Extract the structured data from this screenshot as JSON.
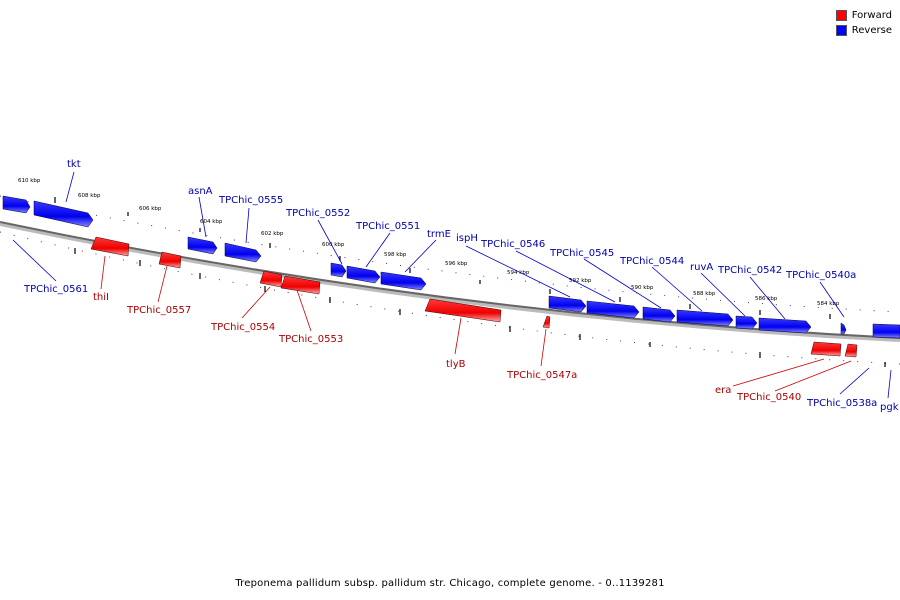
{
  "legend": {
    "forward_label": "Forward",
    "reverse_label": "Reverse",
    "forward_color": "#ff0000",
    "reverse_color": "#0000ff"
  },
  "caption": "Treponema pallidum subsp. pallidum str. Chicago, complete genome. - 0..1139281",
  "colors": {
    "forward_label": "#aa0000",
    "reverse_label": "#0000aa",
    "backbone": "#777777"
  },
  "scale_labels": [
    "610 kbp",
    "608 kbp",
    "606 kbp",
    "604 kbp",
    "602 kbp",
    "600 kbp",
    "598 kbp",
    "596 kbp",
    "594 kbp",
    "592 kbp",
    "590 kbp",
    "588 kbp",
    "586 kbp",
    "584 kbp"
  ],
  "genes_reverse": [
    "tkt",
    "asnA",
    "TPChic_0555",
    "TPChic_0552",
    "TPChic_0551",
    "trmE",
    "ispH",
    "TPChic_0546",
    "TPChic_0545",
    "TPChic_0544",
    "ruvA",
    "TPChic_0542",
    "TPChic_0540a",
    "TPChic_0561",
    "TPChic_0538a",
    "pgk"
  ],
  "genes_forward": [
    "thiI",
    "TPChic_0557",
    "TPChic_0554",
    "TPChic_0553",
    "tlyB",
    "TPChic_0547a",
    "era",
    "TPChic_0540"
  ]
}
